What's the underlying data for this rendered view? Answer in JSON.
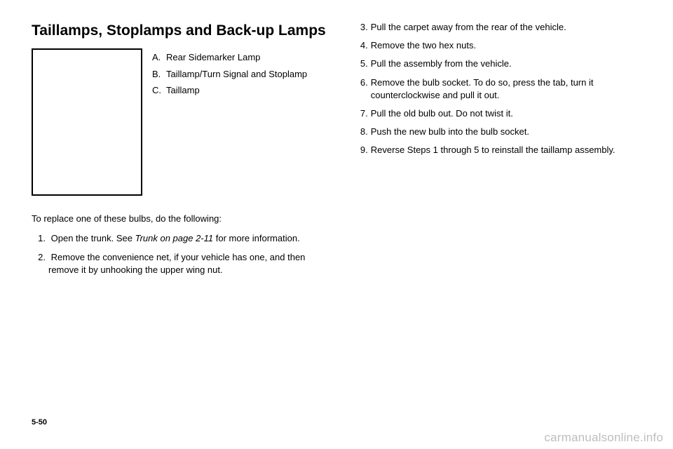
{
  "heading": "Taillamps, Stoplamps and Back-up Lamps",
  "legend": [
    {
      "letter": "A.",
      "text": "Rear Sidemarker Lamp"
    },
    {
      "letter": "B.",
      "text": "Taillamp/Turn Signal and Stoplamp"
    },
    {
      "letter": "C.",
      "text": "Taillamp"
    }
  ],
  "intro": "To replace one of these bulbs, do the following:",
  "left_steps": [
    {
      "prefix": "Open the trunk. See ",
      "italic": "Trunk on page 2-11",
      "suffix": " for more information."
    },
    {
      "prefix": "Remove the convenience net, if your vehicle has one, and then remove it by unhooking the upper wing nut.",
      "italic": "",
      "suffix": ""
    }
  ],
  "right_steps": [
    "Pull the carpet away from the rear of the vehicle.",
    "Remove the two hex nuts.",
    "Pull the assembly from the vehicle.",
    "Remove the bulb socket. To do so, press the tab, turn it counterclockwise and pull it out.",
    "Pull the old bulb out. Do not twist it.",
    "Push the new bulb into the bulb socket.",
    "Reverse Steps 1 through 5 to reinstall the taillamp assembly."
  ],
  "page_number": "5-50",
  "watermark": "carmanualsonline.info"
}
